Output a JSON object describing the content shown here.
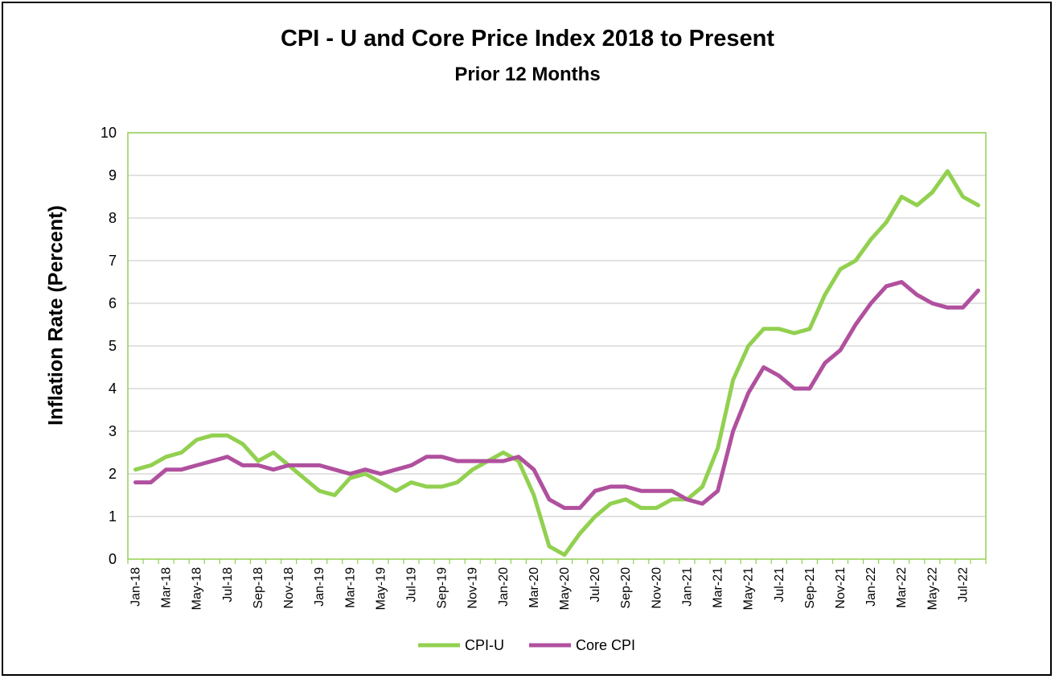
{
  "chart_data": {
    "type": "line",
    "title": "CPI - U and Core Price Index 2018 to Present",
    "subtitle": "Prior 12 Months",
    "xlabel": "",
    "ylabel": "Inflation Rate (Percent)",
    "ylim": [
      0,
      10
    ],
    "yticks": [
      "0",
      "1",
      "2",
      "3",
      "4",
      "5",
      "6",
      "7",
      "8",
      "9",
      "10"
    ],
    "x": [
      "Jan-18",
      "Feb-18",
      "Mar-18",
      "Apr-18",
      "May-18",
      "Jun-18",
      "Jul-18",
      "Aug-18",
      "Sep-18",
      "Oct-18",
      "Nov-18",
      "Dec-18",
      "Jan-19",
      "Feb-19",
      "Mar-19",
      "Apr-19",
      "May-19",
      "Jun-19",
      "Jul-19",
      "Aug-19",
      "Sep-19",
      "Oct-19",
      "Nov-19",
      "Dec-19",
      "Jan-20",
      "Feb-20",
      "Mar-20",
      "Apr-20",
      "May-20",
      "Jun-20",
      "Jul-20",
      "Aug-20",
      "Sep-20",
      "Oct-20",
      "Nov-20",
      "Dec-20",
      "Jan-21",
      "Feb-21",
      "Mar-21",
      "Apr-21",
      "May-21",
      "Jun-21",
      "Jul-21",
      "Aug-21",
      "Sep-21",
      "Oct-21",
      "Nov-21",
      "Dec-21",
      "Jan-22",
      "Feb-22",
      "Mar-22",
      "Apr-22",
      "May-22",
      "Jun-22",
      "Jul-22",
      "Aug-22"
    ],
    "xtick_labels": [
      "Jan-18",
      "Mar-18",
      "May-18",
      "Jul-18",
      "Sep-18",
      "Nov-18",
      "Jan-19",
      "Mar-19",
      "May-19",
      "Jul-19",
      "Sep-19",
      "Nov-19",
      "Jan-20",
      "Mar-20",
      "May-20",
      "Jul-20",
      "Sep-20",
      "Nov-20",
      "Jan-21",
      "Mar-21",
      "May-21",
      "Jul-21",
      "Sep-21",
      "Nov-21",
      "Jan-22",
      "Mar-22",
      "May-22",
      "Jul-22"
    ],
    "series": [
      {
        "name": "CPI-U",
        "color": "#92D050",
        "values": [
          2.1,
          2.2,
          2.4,
          2.5,
          2.8,
          2.9,
          2.9,
          2.7,
          2.3,
          2.5,
          2.2,
          1.9,
          1.6,
          1.5,
          1.9,
          2.0,
          1.8,
          1.6,
          1.8,
          1.7,
          1.7,
          1.8,
          2.1,
          2.3,
          2.5,
          2.3,
          1.5,
          0.3,
          0.1,
          0.6,
          1.0,
          1.3,
          1.4,
          1.2,
          1.2,
          1.4,
          1.4,
          1.7,
          2.6,
          4.2,
          5.0,
          5.4,
          5.4,
          5.3,
          5.4,
          6.2,
          6.8,
          7.0,
          7.5,
          7.9,
          8.5,
          8.3,
          8.6,
          9.1,
          8.5,
          8.3
        ]
      },
      {
        "name": "Core CPI",
        "color": "#B0509E",
        "values": [
          1.8,
          1.8,
          2.1,
          2.1,
          2.2,
          2.3,
          2.4,
          2.2,
          2.2,
          2.1,
          2.2,
          2.2,
          2.2,
          2.1,
          2.0,
          2.1,
          2.0,
          2.1,
          2.2,
          2.4,
          2.4,
          2.3,
          2.3,
          2.3,
          2.3,
          2.4,
          2.1,
          1.4,
          1.2,
          1.2,
          1.6,
          1.7,
          1.7,
          1.6,
          1.6,
          1.6,
          1.4,
          1.3,
          1.6,
          3.0,
          3.9,
          4.5,
          4.3,
          4.0,
          4.0,
          4.6,
          4.9,
          5.5,
          6.0,
          6.4,
          6.5,
          6.2,
          6.0,
          5.9,
          5.9,
          6.3
        ]
      }
    ],
    "grid": true,
    "legend": "bottom-center",
    "colors": {
      "axis": "#92D050",
      "grid": "#D9D9D9"
    }
  }
}
